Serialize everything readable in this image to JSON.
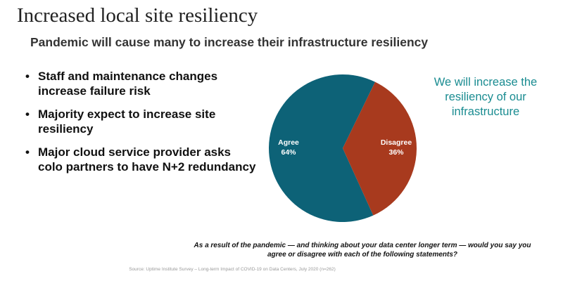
{
  "title": "Increased local site resiliency",
  "subtitle": "Pandemic will cause many to increase their infrastructure resiliency",
  "bullets": [
    "Staff and maintenance changes increase failure risk",
    "Majority expect to increase site resiliency",
    "Major cloud service provider asks colo partners to have N+2 redundancy"
  ],
  "callout": "We will increase the resiliency of our infrastructure",
  "question": "As a result of the pandemic — and thinking about your data center longer term — would you say you agree or disagree with each of the following statements?",
  "source": "Source: Uptime Institute Survey – Long-term Impact of COVID-19 on Data Centers, July 2020 (n=262)",
  "chart_data": {
    "type": "pie",
    "categories": [
      "Agree",
      "Disagree"
    ],
    "values": [
      64,
      36
    ],
    "labels": [
      "64%",
      "36%"
    ],
    "colors": [
      "#0d6277",
      "#a83a1e"
    ]
  }
}
